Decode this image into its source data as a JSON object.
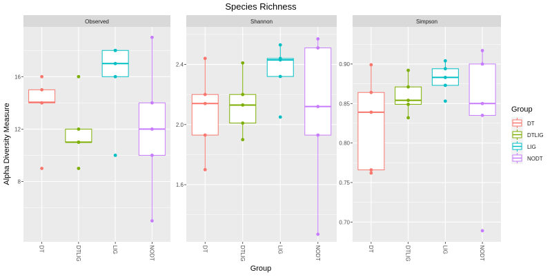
{
  "chart_data": {
    "type": "box",
    "title": "Species Richness",
    "xlabel": "Group",
    "ylabel": "Alpha Diversity Measure",
    "legend": {
      "title": "Group",
      "placement": "right",
      "entries": [
        {
          "name": "DT",
          "color": "#F8766D"
        },
        {
          "name": "DTLIG",
          "color": "#7CAE00"
        },
        {
          "name": "LIG",
          "color": "#00BFC4"
        },
        {
          "name": "NODT",
          "color": "#C77CFF"
        }
      ]
    },
    "categories": [
      "DT",
      "DTLIG",
      "LIG",
      "NODT"
    ],
    "grid": true,
    "panels": [
      {
        "title": "Observed",
        "ylim": [
          3.4,
          19.8
        ],
        "yticks": [
          8,
          12,
          16
        ],
        "ytick_labels": [
          "8",
          "12",
          "16"
        ],
        "boxes": [
          {
            "group": "DT",
            "q1": 14,
            "median": 14.05,
            "q3": 15,
            "whisker_low": 14,
            "whisker_high": 15,
            "points": [
              16,
              15,
              14,
              14,
              9
            ]
          },
          {
            "group": "DTLIG",
            "q1": 11,
            "median": 11,
            "q3": 12,
            "whisker_low": 11,
            "whisker_high": 12,
            "points": [
              16,
              12,
              11,
              11,
              9
            ]
          },
          {
            "group": "LIG",
            "q1": 16,
            "median": 17,
            "q3": 18,
            "whisker_low": 16,
            "whisker_high": 18,
            "points": [
              18,
              18,
              17,
              16,
              10
            ]
          },
          {
            "group": "NODT",
            "q1": 10,
            "median": 12,
            "q3": 14,
            "whisker_low": 5,
            "whisker_high": 19,
            "points": [
              19,
              14,
              12,
              10,
              5
            ]
          }
        ]
      },
      {
        "title": "Shannon",
        "ylim": [
          1.22,
          2.65
        ],
        "yticks": [
          1.6,
          2.0,
          2.4
        ],
        "ytick_labels": [
          "1.6",
          "2.0",
          "2.4"
        ],
        "boxes": [
          {
            "group": "DT",
            "q1": 1.93,
            "median": 2.14,
            "q3": 2.2,
            "whisker_low": 1.7,
            "whisker_high": 2.44,
            "points": [
              2.44,
              2.2,
              2.14,
              1.93,
              1.7
            ]
          },
          {
            "group": "DTLIG",
            "q1": 2.01,
            "median": 2.13,
            "q3": 2.2,
            "whisker_low": 1.9,
            "whisker_high": 2.41,
            "points": [
              2.41,
              2.2,
              2.13,
              2.01,
              1.9
            ]
          },
          {
            "group": "LIG",
            "q1": 2.32,
            "median": 2.43,
            "q3": 2.44,
            "whisker_low": 2.32,
            "whisker_high": 2.53,
            "points": [
              2.53,
              2.44,
              2.43,
              2.32,
              2.05
            ]
          },
          {
            "group": "NODT",
            "q1": 1.93,
            "median": 2.12,
            "q3": 2.51,
            "whisker_low": 1.27,
            "whisker_high": 2.57,
            "points": [
              2.57,
              2.51,
              2.12,
              1.93,
              1.27
            ]
          }
        ]
      },
      {
        "title": "Simpson",
        "ylim": [
          0.675,
          0.947
        ],
        "yticks": [
          0.7,
          0.75,
          0.8,
          0.85,
          0.9
        ],
        "ytick_labels": [
          "0.70",
          "0.75",
          "0.80",
          "0.85",
          "0.90"
        ],
        "boxes": [
          {
            "group": "DT",
            "q1": 0.766,
            "median": 0.839,
            "q3": 0.864,
            "whisker_low": 0.762,
            "whisker_high": 0.899,
            "points": [
              0.899,
              0.864,
              0.839,
              0.766,
              0.762
            ]
          },
          {
            "group": "DTLIG",
            "q1": 0.849,
            "median": 0.854,
            "q3": 0.871,
            "whisker_low": 0.832,
            "whisker_high": 0.892,
            "points": [
              0.892,
              0.871,
              0.854,
              0.849,
              0.832
            ]
          },
          {
            "group": "LIG",
            "q1": 0.873,
            "median": 0.883,
            "q3": 0.894,
            "whisker_low": 0.873,
            "whisker_high": 0.904,
            "points": [
              0.904,
              0.894,
              0.883,
              0.873,
              0.853
            ]
          },
          {
            "group": "NODT",
            "q1": 0.835,
            "median": 0.85,
            "q3": 0.9,
            "whisker_low": 0.835,
            "whisker_high": 0.917,
            "points": [
              0.917,
              0.9,
              0.85,
              0.835,
              0.689
            ]
          }
        ]
      }
    ]
  }
}
